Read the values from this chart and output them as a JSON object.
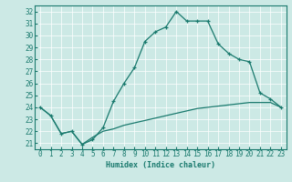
{
  "xlabel": "Humidex (Indice chaleur)",
  "bg_color": "#cce9e5",
  "line_color": "#1a7a6e",
  "xlim": [
    -0.5,
    23.5
  ],
  "ylim": [
    20.5,
    32.5
  ],
  "yticks": [
    21,
    22,
    23,
    24,
    25,
    26,
    27,
    28,
    29,
    30,
    31,
    32
  ],
  "xticks": [
    0,
    1,
    2,
    3,
    4,
    5,
    6,
    7,
    8,
    9,
    10,
    11,
    12,
    13,
    14,
    15,
    16,
    17,
    18,
    19,
    20,
    21,
    22,
    23
  ],
  "series1_x": [
    0,
    1,
    2,
    3,
    4,
    5,
    6,
    7,
    8,
    9,
    10,
    11,
    12,
    13,
    14,
    15,
    16,
    17,
    18,
    19,
    20,
    21,
    22,
    23
  ],
  "series1_y": [
    24.0,
    23.3,
    21.8,
    22.0,
    20.9,
    21.3,
    22.3,
    24.5,
    26.0,
    27.3,
    29.5,
    30.3,
    30.7,
    32.0,
    31.2,
    31.2,
    31.2,
    29.3,
    28.5,
    28.0,
    27.8,
    25.2,
    24.7,
    24.0
  ],
  "series3_x": [
    0,
    1,
    2,
    3,
    4,
    5,
    6,
    7,
    8,
    9,
    10,
    11,
    12,
    13,
    14,
    15,
    16,
    17,
    18,
    19,
    20,
    21,
    22,
    23
  ],
  "series3_y": [
    24.0,
    23.3,
    21.8,
    22.0,
    20.9,
    21.5,
    22.0,
    22.2,
    22.5,
    22.7,
    22.9,
    23.1,
    23.3,
    23.5,
    23.7,
    23.9,
    24.0,
    24.1,
    24.2,
    24.3,
    24.4,
    24.4,
    24.4,
    24.0
  ]
}
